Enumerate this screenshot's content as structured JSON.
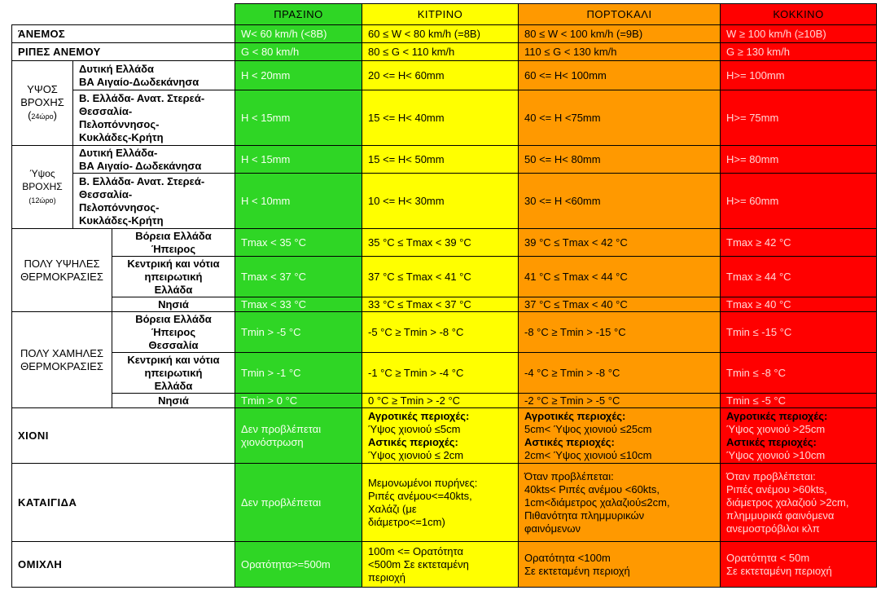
{
  "headers": {
    "green": "ΠΡΑΣΙΝΟ",
    "yellow": "ΚΙΤΡΙΝΟ",
    "orange": "ΠΟΡΤΟΚΑΛΙ",
    "red": "ΚΟΚΚΙΝΟ"
  },
  "colors": {
    "green": "#2fd625",
    "yellow": "#ffff00",
    "orange": "#ff9900",
    "red": "#ff0000"
  },
  "rows": {
    "wind": {
      "label": "ΆΝΕΜΟΣ",
      "green": "W< 60 km/h  (<8B)",
      "yellow": "60 ≤ W < 80 km/h (=8B)",
      "orange": "80 ≤ W < 100 km/h (=9B)",
      "red": "W ≥ 100 km/h  (≥10B)"
    },
    "gusts": {
      "label": "ΡΙΠΕΣ ΑΝΕΜΟΥ",
      "green": "G < 80 km/h",
      "yellow": "80 ≤ G < 110 km/h",
      "orange": "110 ≤ G < 130 km/h",
      "red": "G ≥ 130 km/h"
    },
    "rain24": {
      "label": "ΥΨΟΣ ΒΡΟΧΗΣ (24ώρο)",
      "label_main": "ΥΨΟΣ\nΒΡΟΧΗΣ\n(",
      "label_period": "24ώρο",
      "label_close": ")",
      "west": {
        "region": "Δυτική Ελλάδα\nΒΑ Αιγαίο-Δωδεκάνησα",
        "green": "H < 20mm",
        "yellow": "20 <= H< 60mm",
        "orange": "60 <= H< 100mm",
        "red": "H>= 100mm"
      },
      "east": {
        "region": "Β. Ελλάδα- Ανατ. Στερεά-\nΘεσσαλία-\nΠελοπόννησος-\nΚυκλάδες-Κρήτη",
        "green": "H < 15mm",
        "yellow": "15 <= H< 40mm",
        "orange": "40 <= H <75mm",
        "red": "H>= 75mm"
      }
    },
    "rain12": {
      "label_main": "Ύψος\nΒΡΟΧΗΣ",
      "label_period": "(12ώρο)",
      "west": {
        "region": "Δυτική Ελλάδα-\nΒΑ Αιγαίο- Δωδεκάνησα",
        "green": "H < 15mm",
        "yellow": "15 <= H< 50mm",
        "orange": "50 <= H< 80mm",
        "red": "H>= 80mm"
      },
      "east": {
        "region": "Β. Ελλάδα- Ανατ. Στερεά-\nΘεσσαλία-\nΠελοπόννησος-\nΚυκλάδες-Κρήτη",
        "green": "H < 10mm",
        "yellow": "10 <= H< 30mm",
        "orange": "30 <= H <60mm",
        "red": "H>= 60mm"
      }
    },
    "heat": {
      "label": "ΠΟΛΥ ΥΨΗΛΕΣ\nΘΕΡΜΟΚΡΑΣΙΕΣ",
      "north": {
        "region": "Βόρεια Ελλάδα\nΉπειρος",
        "green": "Tmax < 35 °C",
        "yellow": "35 °C ≤ Tmax < 39 °C",
        "orange": "39 °C ≤ Tmax < 42 °C",
        "red": "Tmax ≥ 42 °C"
      },
      "central": {
        "region": "Κεντρική και νότια\nηπειρωτική\nΕλλάδα",
        "green": "Tmax < 37 °C",
        "yellow": "37 °C ≤ Tmax < 41 °C",
        "orange": "41 °C ≤ Tmax < 44 °C",
        "red": "Tmax ≥ 44 °C"
      },
      "islands": {
        "region": "Νησιά",
        "green": "Tmax < 33 °C",
        "yellow": "33 °C ≤ Tmax < 37 °C",
        "orange": "37 °C ≤ Tmax < 40 °C",
        "red": "Tmax ≥ 40 °C"
      }
    },
    "cold": {
      "label": "ΠΟΛΥ ΧΑΜΗΛΕΣ\nΘΕΡΜΟΚΡΑΣΙΕΣ",
      "north": {
        "region": "Βόρεια Ελλάδα\nΉπειρος\nΘεσσαλία",
        "green": "Tmin > -5 °C",
        "yellow": "-5 °C ≥ Tmin > -8 °C",
        "orange": "-8 °C ≥  Tmin > -15 °C",
        "red": "Tmin ≤ -15 °C"
      },
      "central": {
        "region": "Κεντρική και νότια\nηπειρωτική\nΕλλάδα",
        "green": "Tmin > -1 °C",
        "yellow": "-1 °C ≥ Tmin > -4 °C",
        "orange": "-4 °C ≥  Tmin > -8 °C",
        "red": "Tmin ≤ -8 °C"
      },
      "islands": {
        "region": "Νησιά",
        "green": "Tmin > 0 °C",
        "yellow": "0 °C ≥ Tmin > -2 °C",
        "orange": "-2 °C ≥ Tmin > -5 °C",
        "red": "Tmin ≤ -5 °C"
      }
    },
    "snow": {
      "label": "ΧΙΟΝΙ",
      "green": "Δεν προβλέπεται\nχιονόστρωση",
      "yellow": {
        "rural_label": "Αγροτικές περιοχές:",
        "rural": "Ύψος χιονιού ≤5cm",
        "urban_label": "Αστικές περιοχές:",
        "urban": "Ύψος χιονιού ≤ 2cm"
      },
      "orange": {
        "rural_label": "Αγροτικές περιοχές:",
        "rural": "5cm< Ύψος χιονιού ≤25cm",
        "urban_label": "Αστικές περιοχές:",
        "urban": "2cm< Ύψος χιονιού ≤10cm"
      },
      "red": {
        "rural_label": "Αγροτικές περιοχές:",
        "rural": "Ύψος χιονιού >25cm",
        "urban_label": "Αστικές περιοχές:",
        "urban": "Ύψος χιονιού >10cm"
      }
    },
    "storm": {
      "label": "ΚΑΤΑΙΓΙΔΑ",
      "green": "Δεν προβλέπεται",
      "yellow": "Μεμονωμένοι πυρήνες:\nΡιπές ανέμου<=40kts,\nΧαλάζι (με\nδιάμετρο<=1cm)",
      "orange": "Όταν προβλέπεται:\n40kts< Ριπές ανέμου <60kts,\n1cm<διάμετρος χαλαζιού≤2cm,\n Πιθανότητα πλημμυρικών\nφαινόμενων",
      "red": "Όταν προβλέπεται:\nΡιπές ανέμου >60kts,\nδιάμετρος χαλαζιού >2cm,\nπλημμυρικά φαινόμενα\nανεμοστρόβιλοι κλπ"
    },
    "fog": {
      "label": "ΟΜΙΧΛΗ",
      "green": "Ορατότητα>=500m",
      "yellow": "100m <= Ορατότητα\n<500m  Σε εκτεταμένη\nπεριοχή",
      "orange": "Ορατότητα <100m\nΣε εκτεταμένη περιοχή",
      "red": "Ορατότητα < 50m\nΣε εκτεταμένη περιοχή"
    }
  }
}
